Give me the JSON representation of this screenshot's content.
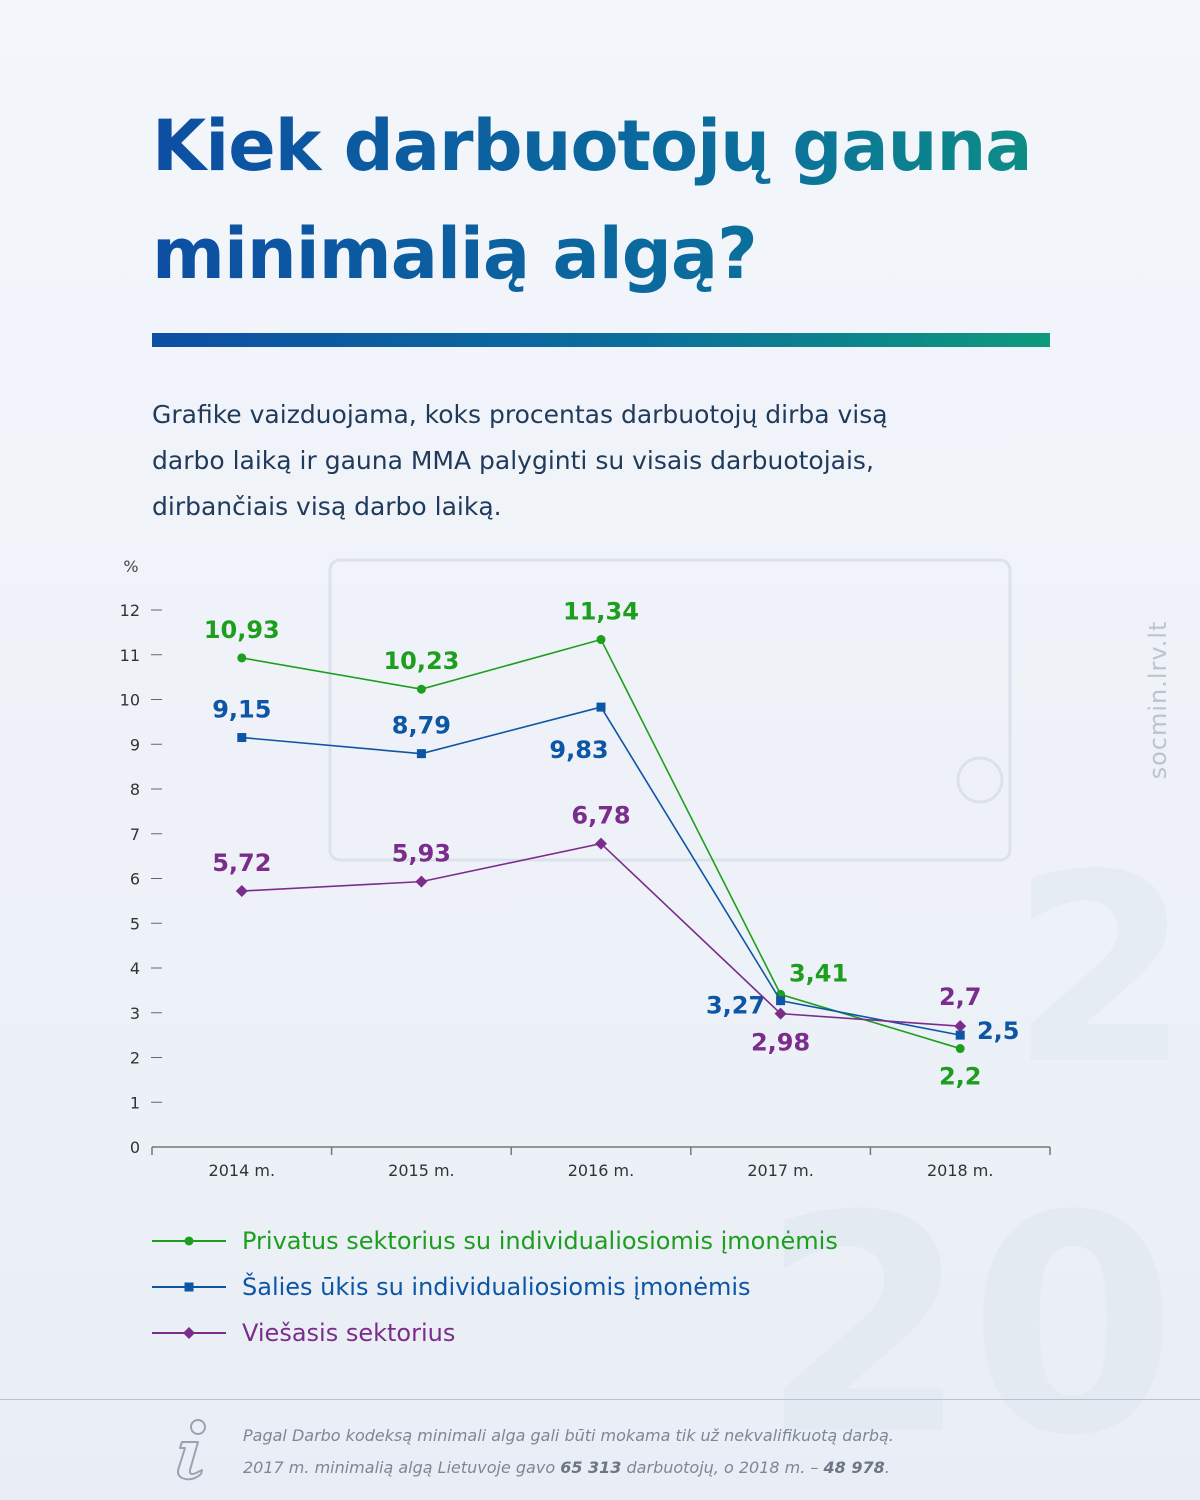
{
  "header": {
    "title_line1": "Kiek darbuotojų gauna",
    "title_line2": "minimalią algą?",
    "subtitle_line1": "Grafike vaizduojama, koks procentas darbuotojų dirba visą",
    "subtitle_line2": "darbo laiką ir gauna MMA palyginti su visais darbuotojais,",
    "subtitle_line3": "dirbančiais visą darbo laiką."
  },
  "chart_data": {
    "type": "line",
    "x": [
      "2014 m.",
      "2015 m.",
      "2016 m.",
      "2017 m.",
      "2018 m."
    ],
    "ylabel": "%",
    "ylim": [
      0,
      12
    ],
    "yticks": [
      "0",
      "1",
      "2",
      "3",
      "4",
      "5",
      "6",
      "7",
      "8",
      "9",
      "10",
      "11",
      "12"
    ],
    "grid": false,
    "legend": "bottom",
    "series": [
      {
        "name": "Privatus sektorius su individualiosiomis įmonėmis",
        "color": "#1e9e1e",
        "marker": "circle",
        "values": [
          10.93,
          10.23,
          11.34,
          3.41,
          2.2
        ],
        "labels": [
          "10,93",
          "10,23",
          "11,34",
          "3,41",
          "2,2"
        ]
      },
      {
        "name": "Šalies ūkis su individualiosiomis įmonėmis",
        "color": "#0d55a5",
        "marker": "square",
        "values": [
          9.15,
          8.79,
          9.83,
          3.27,
          2.5
        ],
        "labels": [
          "9,15",
          "8,79",
          "9,83",
          "3,27",
          "2,5"
        ]
      },
      {
        "name": "Viešasis sektorius",
        "color": "#7b2d8c",
        "marker": "diamond",
        "values": [
          5.72,
          5.93,
          6.78,
          2.98,
          2.7
        ],
        "labels": [
          "5,72",
          "5,93",
          "6,78",
          "2,98",
          "2,7"
        ]
      }
    ]
  },
  "footnote": {
    "line1": "Pagal Darbo kodeksą minimali alga gali būti mokama tik už nekvalifikuotą darbą.",
    "line2_part1": "2017 m. minimalią algą Lietuvoje gavo ",
    "line2_value1": "65 313",
    "line2_part2": " darbuotojų, o 2018 m. – ",
    "line2_value2": "48 978",
    "line2_part3": "."
  },
  "watermark": "socmin.lrv.lt"
}
